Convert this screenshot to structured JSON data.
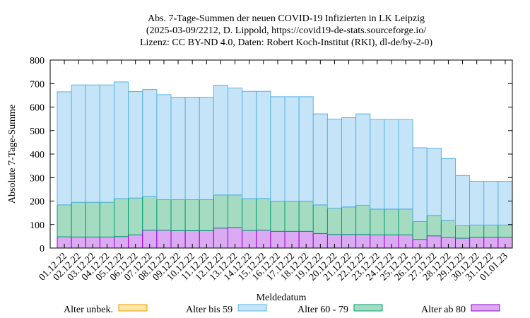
{
  "chart_data": {
    "type": "bar",
    "stacked": true,
    "title_lines": [
      "Abs. 7-Tage-Summen der neuen COVID-19 Infizierten in LK Leipzig",
      "(2025-03-09/2212, D. Lippold, https://covid19-de-stats.sourceforge.io/",
      "Lizenz: CC BY-ND 4.0, Daten: Robert Koch-Institut (RKI), dl-de/by-2-0)"
    ],
    "xlabel": "Meldedatum",
    "ylabel": "Absolute 7-Tage-Summe",
    "ylim": [
      0,
      800
    ],
    "yticks": [
      0,
      100,
      200,
      300,
      400,
      500,
      600,
      700,
      800
    ],
    "grid": false,
    "legend_position": "bottom",
    "categories": [
      "01.12.22",
      "02.12.22",
      "03.12.22",
      "04.12.22",
      "05.12.22",
      "06.12.22",
      "07.12.22",
      "08.12.22",
      "09.12.22",
      "10.12.22",
      "11.12.22",
      "12.12.22",
      "13.12.22",
      "14.12.22",
      "15.12.22",
      "16.12.22",
      "17.12.22",
      "18.12.22",
      "19.12.22",
      "20.12.22",
      "21.12.22",
      "22.12.22",
      "23.12.22",
      "24.12.22",
      "25.12.22",
      "26.12.22",
      "27.12.22",
      "28.12.22",
      "29.12.22",
      "30.12.22",
      "31.12.22",
      "01.01.23"
    ],
    "series": [
      {
        "name": "Alter unbek.",
        "fill": "#fde6a8",
        "stroke": "#e69f00",
        "values": [
          0,
          0,
          0,
          0,
          0,
          0,
          0,
          0,
          0,
          0,
          0,
          0,
          0,
          0,
          0,
          0,
          0,
          0,
          0,
          0,
          0,
          0,
          0,
          0,
          0,
          0,
          0,
          0,
          0,
          0,
          0,
          0
        ]
      },
      {
        "name": "Alter ab 80",
        "fill": "#dcaaf2",
        "stroke": "#9400d3",
        "values": [
          48,
          47,
          47,
          47,
          49,
          56,
          76,
          76,
          74,
          74,
          74,
          85,
          88,
          75,
          76,
          71,
          71,
          71,
          62,
          58,
          58,
          58,
          56,
          56,
          56,
          37,
          52,
          45,
          42,
          46,
          46,
          46
        ]
      },
      {
        "name": "Alter 60 - 79",
        "fill": "#a5dcc1",
        "stroke": "#009e73",
        "values": [
          136,
          148,
          148,
          148,
          161,
          157,
          143,
          130,
          132,
          132,
          132,
          141,
          138,
          135,
          135,
          128,
          128,
          128,
          122,
          112,
          117,
          124,
          110,
          110,
          110,
          76,
          87,
          73,
          53,
          52,
          52,
          52
        ]
      },
      {
        "name": "Alter bis 59",
        "fill": "#c5e4f7",
        "stroke": "#56b4e9",
        "values": [
          481,
          499,
          499,
          499,
          497,
          453,
          456,
          447,
          436,
          436,
          436,
          467,
          455,
          457,
          456,
          445,
          445,
          445,
          387,
          379,
          380,
          389,
          381,
          381,
          381,
          314,
          285,
          263,
          214,
          186,
          186,
          186
        ]
      }
    ],
    "legend_entries": [
      "Alter unbek.",
      "Alter bis 59",
      "Alter 60 - 79",
      "Alter ab 80"
    ]
  }
}
